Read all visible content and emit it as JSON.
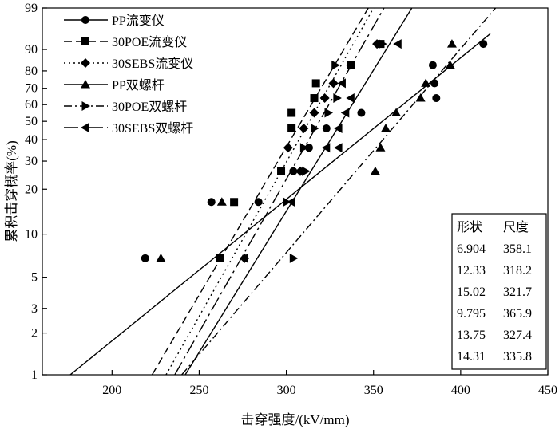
{
  "chart_data": {
    "type": "scatter",
    "title": "",
    "xlabel": "击穿强度/(kV/mm)",
    "ylabel": "累积击穿概率(%)",
    "xlim": [
      160,
      450
    ],
    "xticks": [
      200,
      250,
      300,
      350,
      400,
      450
    ],
    "yscale": "weibull-probability",
    "ylim": [
      1,
      99
    ],
    "yticks": [
      1,
      2,
      3,
      5,
      10,
      20,
      30,
      40,
      50,
      60,
      70,
      80,
      90,
      99
    ],
    "grid": false,
    "legend_position": "top-left",
    "series": [
      {
        "name": "PP流变仪",
        "marker": "circle",
        "line": "solid",
        "x": [
          219,
          257,
          284,
          304,
          313,
          323,
          343,
          386,
          385,
          384,
          413
        ],
        "y": [
          6.8,
          16.5,
          16.5,
          26,
          36,
          46,
          55,
          64,
          73,
          83,
          92
        ],
        "shape": 6.904,
        "scale": 358.1
      },
      {
        "name": "30POE流变仪",
        "marker": "square",
        "line": "dashed",
        "x": [
          262,
          270,
          297,
          303,
          303,
          316,
          317,
          337,
          354
        ],
        "y": [
          6.8,
          16.5,
          26,
          46,
          55,
          64,
          73,
          83,
          92
        ],
        "shape": 12.33,
        "scale": 318.2
      },
      {
        "name": "30SEBS流变仪",
        "marker": "diamond",
        "line": "dotted",
        "x": [
          276,
          301,
          308,
          310,
          316,
          322,
          327,
          337,
          352
        ],
        "y": [
          6.8,
          36,
          26,
          46,
          55,
          64,
          73,
          83,
          92
        ],
        "shape": 15.02,
        "scale": 321.7
      },
      {
        "name": "PP双螺杆",
        "marker": "triangle-up",
        "line": "solid",
        "x": [
          228,
          263,
          351,
          354,
          357,
          363,
          377,
          380,
          394,
          395
        ],
        "y": [
          6.8,
          16.5,
          26,
          36,
          46,
          55,
          64,
          73,
          83,
          92
        ],
        "shape": 9.795,
        "scale": 365.9
      },
      {
        "name": "30POE双螺杆",
        "marker": "triangle-right",
        "line": "dash-dot",
        "x": [
          304,
          300,
          311,
          310,
          316,
          324,
          329,
          328,
          355
        ],
        "y": [
          6.8,
          16.5,
          26,
          36,
          46,
          55,
          64,
          83,
          92
        ],
        "shape": 13.75,
        "scale": 327.4
      },
      {
        "name": "30SEBS双螺杆",
        "marker": "triangle-left",
        "line": "long-dash-dot",
        "x": [
          276,
          303,
          330,
          330,
          323,
          334,
          337,
          332,
          364
        ],
        "y": [
          6.8,
          16.5,
          36,
          46,
          36,
          55,
          64,
          73,
          92
        ],
        "shape": 14.31,
        "scale": 335.8
      }
    ],
    "fit_lines": [
      {
        "series": "PP流变仪",
        "x": [
          176,
          417
        ],
        "y": [
          1,
          95
        ]
      },
      {
        "series": "30POE流变仪",
        "x": [
          223,
          347
        ],
        "y": [
          1,
          99
        ]
      },
      {
        "series": "30SEBS流变仪",
        "x": [
          231,
          350
        ],
        "y": [
          1,
          99
        ]
      },
      {
        "series": "PP双螺杆",
        "x": [
          242,
          372
        ],
        "y": [
          1,
          99
        ]
      },
      {
        "series": "30POE双螺杆",
        "x": [
          240,
          420
        ],
        "y": [
          1,
          99
        ]
      },
      {
        "series": "30SEBS双螺杆",
        "x": [
          236,
          356
        ],
        "y": [
          1,
          99
        ]
      }
    ],
    "table": {
      "headers": [
        "形状",
        "尺度"
      ],
      "rows": [
        [
          "6.904",
          "358.1"
        ],
        [
          "12.33",
          "318.2"
        ],
        [
          "15.02",
          "321.7"
        ],
        [
          "9.795",
          "365.9"
        ],
        [
          "13.75",
          "327.4"
        ],
        [
          "14.31",
          "335.8"
        ]
      ]
    }
  }
}
